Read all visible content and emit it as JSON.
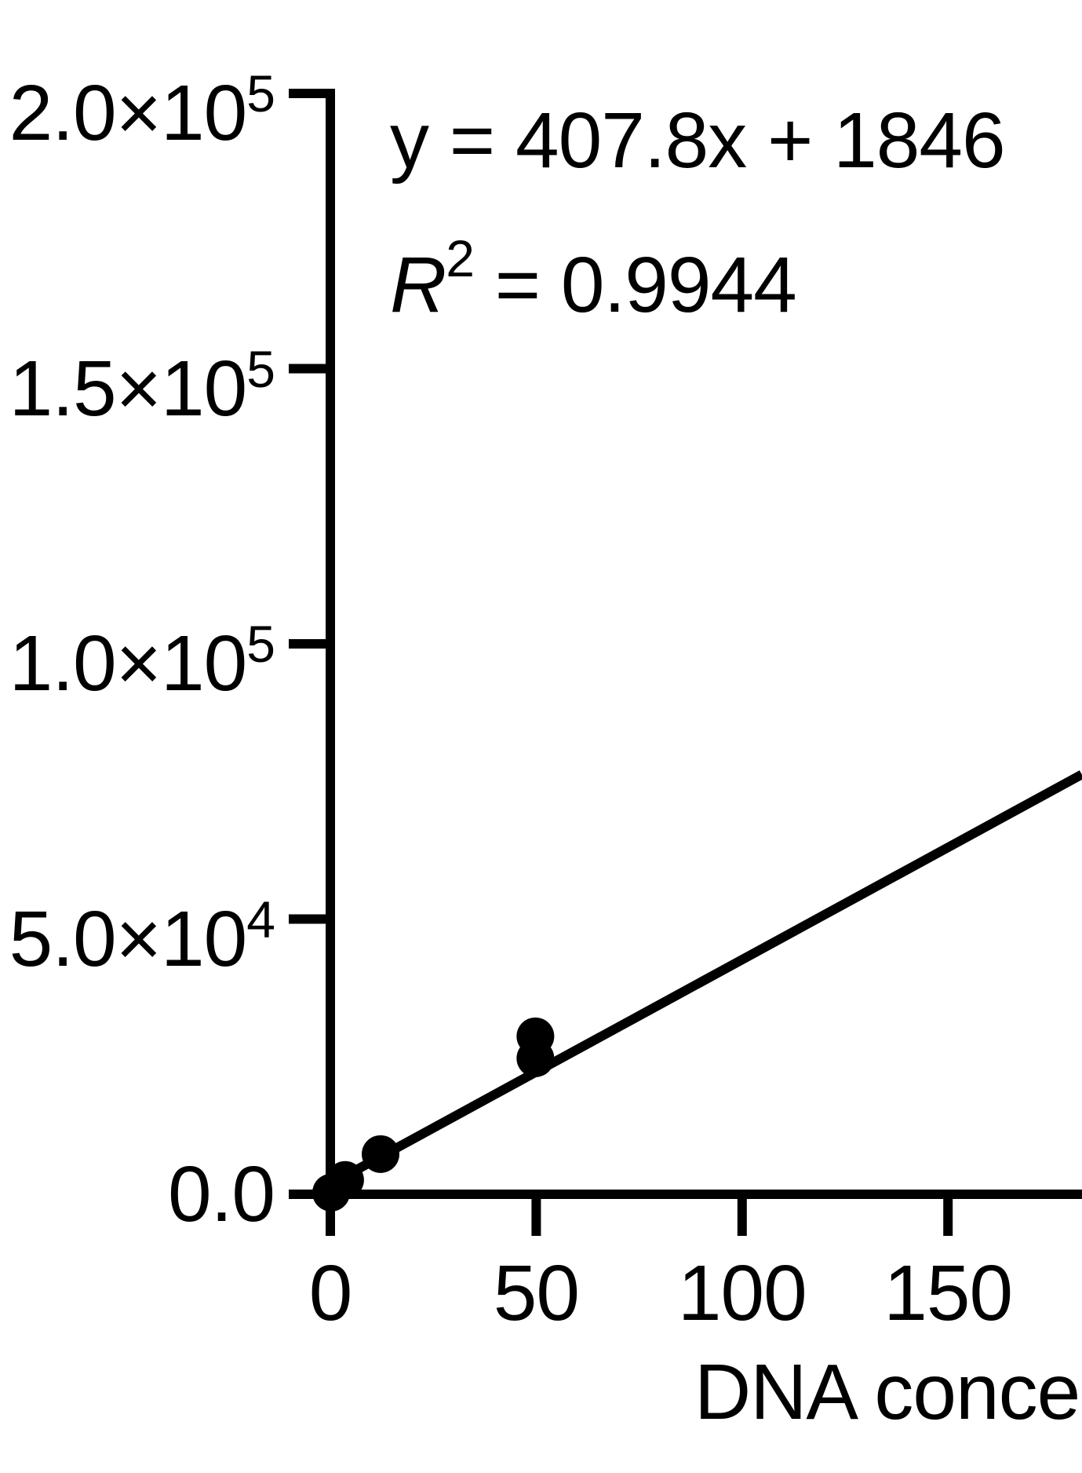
{
  "figure": {
    "background": "#ffffff",
    "ink": "#000000"
  },
  "annotation": {
    "equation_line1": "y = 407.8x + 1846",
    "r_symbol": "R",
    "r_exponent": "2",
    "r_rest": " = 0.9944"
  },
  "x_axis": {
    "title_visible": "DNA conce",
    "ticks": [
      {
        "value": 0,
        "label": "0"
      },
      {
        "value": 50,
        "label": "50"
      },
      {
        "value": 100,
        "label": "100"
      },
      {
        "value": 150,
        "label": "150"
      }
    ]
  },
  "y_axis": {
    "ticks": [
      {
        "value": 200000,
        "base": "2.0×10",
        "sup": "5"
      },
      {
        "value": 150000,
        "base": "1.5×10",
        "sup": "5"
      },
      {
        "value": 100000,
        "base": "1.0×10",
        "sup": "5"
      },
      {
        "value": 50000,
        "base": "5.0×10",
        "sup": "4"
      },
      {
        "value": 0,
        "base": "0.0",
        "sup": ""
      }
    ]
  },
  "chart_data": {
    "type": "scatter",
    "title": "",
    "xlabel": "DNA conce",
    "ylabel": "",
    "xlim": [
      0,
      182.5
    ],
    "ylim": [
      0,
      200000
    ],
    "x_tick_values": [
      0,
      50,
      100,
      150
    ],
    "y_tick_values": [
      0,
      50000,
      100000,
      150000,
      200000
    ],
    "grid": false,
    "legend": null,
    "marker": {
      "shape": "circle",
      "color": "#000000",
      "radius_px": 24
    },
    "points": [
      {
        "x": 0.2,
        "y": 300
      },
      {
        "x": 3.6,
        "y": 2600
      },
      {
        "x": 12.2,
        "y": 7300
      },
      {
        "x": 49.8,
        "y": 24700
      },
      {
        "x": 49.8,
        "y": 28700
      }
    ],
    "fit": {
      "equation": "y = 407.8x + 1846",
      "slope": 407.8,
      "intercept": 1846,
      "r_squared": 0.9944,
      "x_range": [
        0,
        182.5
      ]
    }
  }
}
